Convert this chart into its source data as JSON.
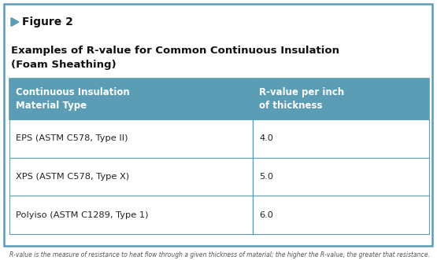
{
  "figure_label": "Figure 2",
  "title_line1": "Examples of R-value for Common Continuous Insulation",
  "title_line2": "(Foam Sheathing)",
  "col1_header": "Continuous Insulation\nMaterial Type",
  "col2_header": "R-value per inch\nof thickness",
  "rows": [
    [
      "EPS (ASTM C578, Type II)",
      "4.0"
    ],
    [
      "XPS (ASTM C578, Type X)",
      "5.0"
    ],
    [
      "Polyiso (ASTM C1289, Type 1)",
      "6.0"
    ]
  ],
  "header_bg": "#5b9db5",
  "header_text_color": "#ffffff",
  "cell_bg": "#ffffff",
  "cell_text_color": "#222222",
  "border_color": "#5b9db5",
  "outer_border_color": "#5b9db5",
  "bg_color": "#ffffff",
  "figure_label_color": "#111111",
  "title_color": "#111111",
  "accent_color": "#5b9db5",
  "footer_color": "#555555",
  "col_split": 0.58,
  "footer_text": "R-value is the measure of resistance to heat flow through a given thickness of material; the higher the R-value, the greater that resistance."
}
